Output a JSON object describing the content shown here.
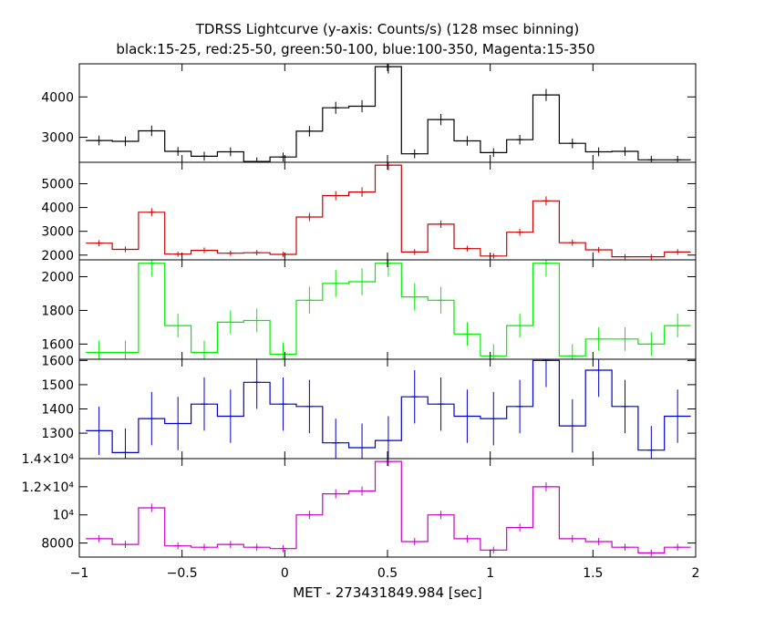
{
  "chart_data": {
    "type": "line",
    "title": "TDRSS Lightcurve (y-axis: Counts/s) (128 msec binning)",
    "subtitle": "black:15-25, red:25-50, green:50-100, blue:100-350, Magenta:15-350",
    "xlabel": "MET - 273431849.984 [sec]",
    "xlim": [
      -1,
      2
    ],
    "x_ticks": [
      -1,
      -0.5,
      0,
      0.5,
      1,
      1.5,
      2
    ],
    "x_tick_labels": [
      "−1",
      "−0.5",
      "0",
      "0.5",
      "1",
      "1.5",
      "2"
    ],
    "bin_edges": [
      -0.968,
      -0.84,
      -0.712,
      -0.584,
      -0.456,
      -0.328,
      -0.2,
      -0.072,
      0.056,
      0.184,
      0.312,
      0.44,
      0.568,
      0.696,
      0.824,
      0.952,
      1.08,
      1.208,
      1.336,
      1.464,
      1.592,
      1.72,
      1.848,
      1.976
    ],
    "series": [
      {
        "band": "15-25",
        "color": "#000000",
        "ylim": [
          2380,
          4820
        ],
        "y_ticks": [
          3000,
          4000
        ],
        "y_tick_labels": [
          "3000",
          "4000"
        ],
        "values": [
          2920,
          2900,
          3160,
          2650,
          2530,
          2640,
          2400,
          2510,
          3150,
          3730,
          3770,
          4750,
          2590,
          3440,
          2910,
          2620,
          2940,
          4050,
          2850,
          2640,
          2650,
          2440,
          2440
        ],
        "errors": [
          120,
          120,
          130,
          110,
          110,
          110,
          100,
          110,
          130,
          150,
          150,
          170,
          110,
          140,
          120,
          110,
          120,
          150,
          120,
          110,
          110,
          100,
          100
        ]
      },
      {
        "band": "25-50",
        "color": "#cc0000",
        "ylim": [
          1800,
          5900
        ],
        "y_ticks": [
          2000,
          3000,
          4000,
          5000
        ],
        "y_tick_labels": [
          "2000",
          "3000",
          "4000",
          "5000"
        ],
        "values": [
          2500,
          2240,
          3800,
          2040,
          2200,
          2080,
          2100,
          2030,
          3600,
          4500,
          4650,
          5780,
          2130,
          3300,
          2270,
          1960,
          2960,
          4280,
          2520,
          2220,
          1930,
          1930,
          2130
        ],
        "errors": [
          130,
          120,
          170,
          110,
          120,
          110,
          110,
          110,
          170,
          190,
          200,
          220,
          120,
          160,
          120,
          110,
          150,
          190,
          130,
          120,
          110,
          110,
          120
        ]
      },
      {
        "band": "50-100",
        "color": "#00ee00",
        "ylim": [
          1510,
          2100
        ],
        "y_ticks": [
          1600,
          1800,
          2000
        ],
        "y_tick_labels": [
          "1600",
          "1800",
          "2000"
        ],
        "values": [
          1550,
          1550,
          2080,
          1710,
          1550,
          1730,
          1740,
          1540,
          1860,
          1960,
          1970,
          2080,
          1880,
          1860,
          1660,
          1530,
          1710,
          2080,
          1530,
          1630,
          1630,
          1600,
          1710
        ],
        "errors": [
          70,
          70,
          80,
          70,
          70,
          70,
          70,
          70,
          80,
          80,
          80,
          80,
          80,
          80,
          70,
          70,
          70,
          80,
          70,
          70,
          70,
          70,
          70
        ]
      },
      {
        "band": "100-350",
        "color": "#0000cc",
        "ylim": [
          1195,
          1605
        ],
        "y_ticks": [
          1300,
          1400,
          1500,
          1600
        ],
        "y_tick_labels": [
          "1300",
          "1400",
          "1500",
          "1600"
        ],
        "values": [
          1310,
          1220,
          1360,
          1340,
          1420,
          1370,
          1510,
          1420,
          1410,
          1260,
          1240,
          1270,
          1450,
          1420,
          1370,
          1360,
          1410,
          1600,
          1330,
          1560,
          1410,
          1230,
          1370
        ],
        "errors": [
          100,
          100,
          110,
          110,
          110,
          110,
          110,
          110,
          110,
          100,
          100,
          100,
          110,
          110,
          110,
          110,
          110,
          110,
          110,
          110,
          110,
          100,
          110
        ]
      },
      {
        "band": "15-350",
        "color": "#cc00cc",
        "ylim": [
          7000,
          14000
        ],
        "y_ticks": [
          8000,
          10000,
          12000,
          14000
        ],
        "y_tick_labels": [
          "8000",
          "10⁴",
          "1.2×10⁴",
          "1.4×10⁴"
        ],
        "values": [
          8300,
          7900,
          10500,
          7800,
          7700,
          7900,
          7700,
          7600,
          10000,
          11500,
          11700,
          13800,
          8100,
          10000,
          8300,
          7500,
          9100,
          12000,
          8300,
          8100,
          7700,
          7300,
          7700
        ],
        "errors": [
          250,
          250,
          300,
          250,
          250,
          250,
          250,
          250,
          300,
          320,
          320,
          350,
          260,
          300,
          260,
          250,
          280,
          320,
          260,
          260,
          250,
          240,
          250
        ]
      }
    ]
  }
}
